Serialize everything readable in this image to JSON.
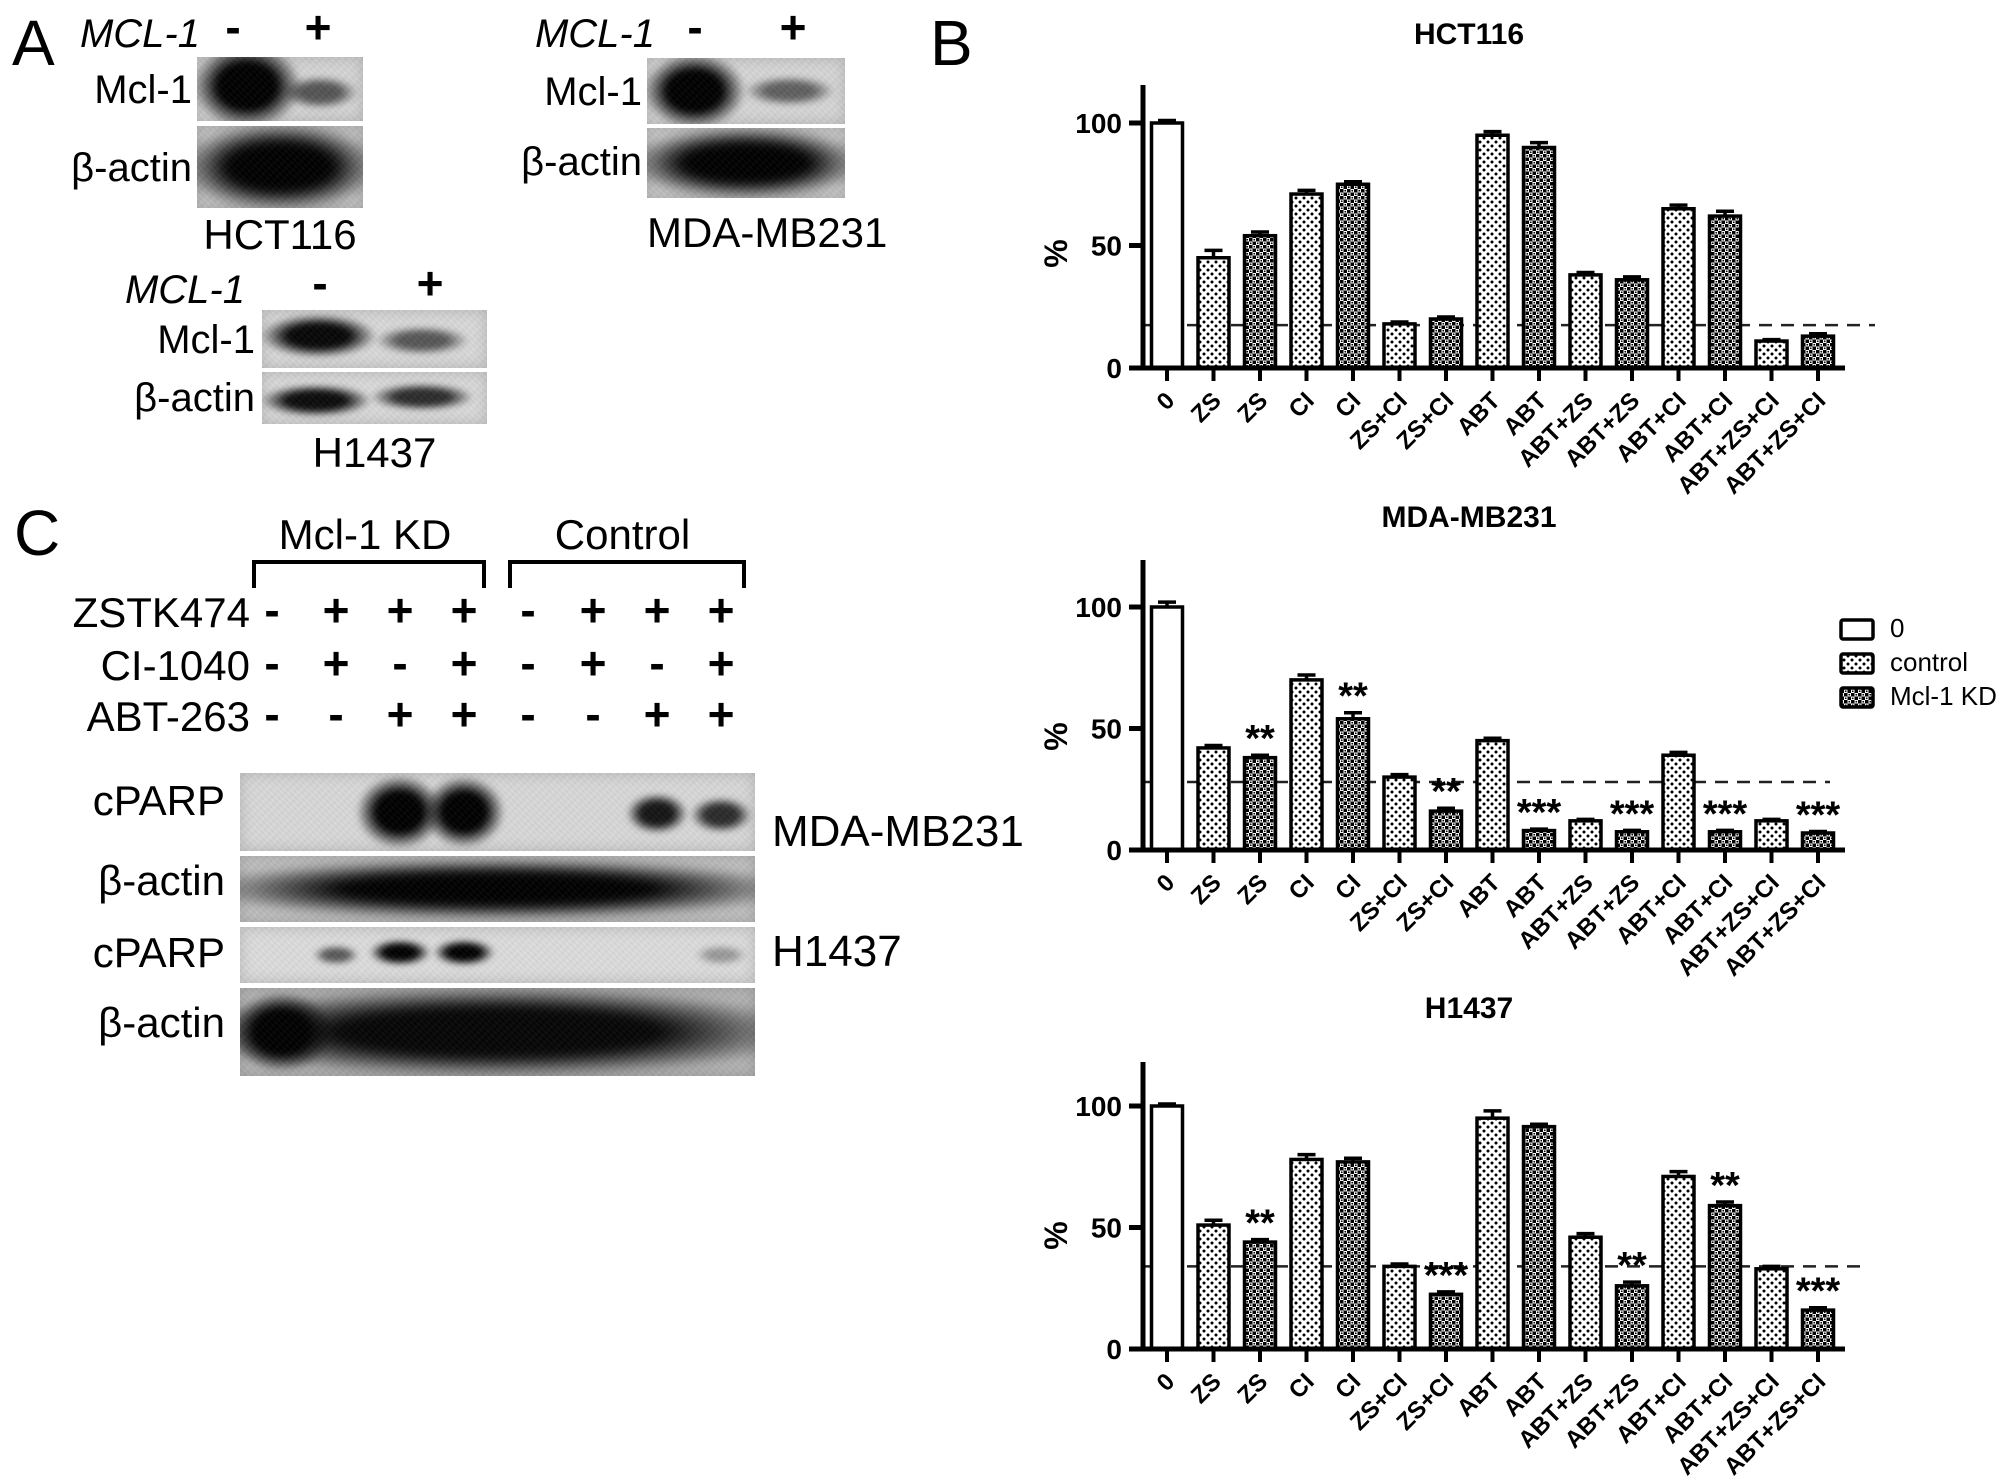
{
  "panelA": {
    "letter": "A",
    "sets": [
      {
        "gene": "MCL-1",
        "neg": "-",
        "pos": "+",
        "protein1": "Mcl-1",
        "protein2": "β-actin",
        "cell": "HCT116"
      },
      {
        "gene": "MCL-1",
        "neg": "-",
        "pos": "+",
        "protein1": "Mcl-1",
        "protein2": "β-actin",
        "cell": "MDA-MB231"
      },
      {
        "gene": "MCL-1",
        "neg": "-",
        "pos": "+",
        "protein1": "Mcl-1",
        "protein2": "β-actin",
        "cell": "H1437"
      }
    ]
  },
  "panelB": {
    "letter": "B",
    "legend": [
      {
        "label": "0",
        "pattern": "white"
      },
      {
        "label": "control",
        "pattern": "dots"
      },
      {
        "label": "Mcl-1 KD",
        "pattern": "check"
      }
    ]
  },
  "panelC": {
    "letter": "C",
    "groups": [
      "Mcl-1 KD",
      "Control"
    ],
    "drugs": [
      {
        "name": "ZSTK474",
        "signs": [
          "-",
          "+",
          "+",
          "+",
          "-",
          "+",
          "+",
          "+"
        ]
      },
      {
        "name": "CI-1040",
        "signs": [
          "-",
          "+",
          "-",
          "+",
          "-",
          "+",
          "-",
          "+"
        ]
      },
      {
        "name": "ABT-263",
        "signs": [
          "-",
          "-",
          "+",
          "+",
          "-",
          "-",
          "+",
          "+"
        ]
      }
    ],
    "blot_rows": [
      "cPARP",
      "β-actin",
      "cPARP",
      "β-actin"
    ],
    "cells": [
      "MDA-MB231",
      "H1437"
    ]
  },
  "chart_data": [
    {
      "type": "bar",
      "title": "HCT116",
      "ylabel": "%",
      "yticks": [
        0,
        50,
        100
      ],
      "ylim": [
        0,
        118
      ],
      "categories": [
        "0",
        "ZS",
        "ZS",
        "CI",
        "CI",
        "ZS+CI",
        "ZS+CI",
        "ABT",
        "ABT",
        "ABT+ZS",
        "ABT+ZS",
        "ABT+CI",
        "ABT+CI",
        "ABT+ZS+CI",
        "ABT+ZS+CI"
      ],
      "groups": [
        "0",
        "control",
        "Mcl-1 KD",
        "control",
        "Mcl-1 KD",
        "control",
        "Mcl-1 KD",
        "control",
        "Mcl-1 KD",
        "control",
        "Mcl-1 KD",
        "control",
        "Mcl-1 KD",
        "control",
        "Mcl-1 KD"
      ],
      "values": [
        100,
        45,
        54,
        71,
        75,
        18,
        20,
        95,
        90,
        38,
        36,
        65,
        62,
        11,
        13
      ],
      "errors": [
        1,
        3,
        1.5,
        1.5,
        1,
        0.8,
        0.8,
        1.5,
        2,
        1,
        1.2,
        1.5,
        2,
        0.6,
        1
      ],
      "sig": [
        "",
        "",
        "",
        "",
        "",
        "",
        "",
        "",
        "",
        "",
        "",
        "",
        "",
        "",
        ""
      ],
      "dashed_line": 17.5,
      "legend_position": null,
      "grid": false
    },
    {
      "type": "bar",
      "title": "MDA-MB231",
      "ylabel": "%",
      "yticks": [
        0,
        50,
        100
      ],
      "ylim": [
        0,
        118
      ],
      "categories": [
        "0",
        "ZS",
        "ZS",
        "CI",
        "CI",
        "ZS+CI",
        "ZS+CI",
        "ABT",
        "ABT",
        "ABT+ZS",
        "ABT+ZS",
        "ABT+CI",
        "ABT+CI",
        "ABT+ZS+CI",
        "ABT+ZS+CI"
      ],
      "groups": [
        "0",
        "control",
        "Mcl-1 KD",
        "control",
        "Mcl-1 KD",
        "control",
        "Mcl-1 KD",
        "control",
        "Mcl-1 KD",
        "control",
        "Mcl-1 KD",
        "control",
        "Mcl-1 KD",
        "control",
        "Mcl-1 KD"
      ],
      "values": [
        100,
        42,
        38,
        70,
        54,
        30,
        16,
        45,
        8,
        12,
        7.5,
        39,
        7.5,
        12,
        7
      ],
      "errors": [
        2,
        1,
        1,
        2,
        2.5,
        1,
        1.2,
        1,
        0.6,
        0.6,
        0.6,
        1.2,
        0.6,
        0.6,
        0.6
      ],
      "sig": [
        "",
        "",
        "**",
        "",
        "**",
        "",
        "**",
        "",
        "***",
        "",
        "***",
        "",
        "***",
        "",
        "***"
      ],
      "dashed_line": 28,
      "legend_position": "right",
      "grid": false
    },
    {
      "type": "bar",
      "title": "H1437",
      "ylabel": "%",
      "yticks": [
        0,
        50,
        100
      ],
      "ylim": [
        0,
        118
      ],
      "categories": [
        "0",
        "ZS",
        "ZS",
        "CI",
        "CI",
        "ZS+CI",
        "ZS+CI",
        "ABT",
        "ABT",
        "ABT+ZS",
        "ABT+ZS",
        "ABT+CI",
        "ABT+CI",
        "ABT+ZS+CI",
        "ABT+ZS+CI"
      ],
      "groups": [
        "0",
        "control",
        "Mcl-1 KD",
        "control",
        "Mcl-1 KD",
        "control",
        "Mcl-1 KD",
        "control",
        "Mcl-1 KD",
        "control",
        "Mcl-1 KD",
        "control",
        "Mcl-1 KD",
        "control",
        "Mcl-1 KD"
      ],
      "values": [
        100,
        51,
        44,
        78,
        77,
        34,
        22.5,
        95,
        91.5,
        46,
        26,
        71,
        59,
        33,
        16
      ],
      "errors": [
        0.8,
        2,
        1,
        2,
        1.5,
        1,
        1,
        3,
        1,
        1.5,
        1.5,
        2,
        1.5,
        1,
        1
      ],
      "sig": [
        "",
        "",
        "**",
        "",
        "",
        "",
        "***",
        "",
        "",
        "",
        "**",
        "",
        "**",
        "",
        "***"
      ],
      "dashed_line": 34,
      "legend_position": null,
      "grid": false
    }
  ]
}
